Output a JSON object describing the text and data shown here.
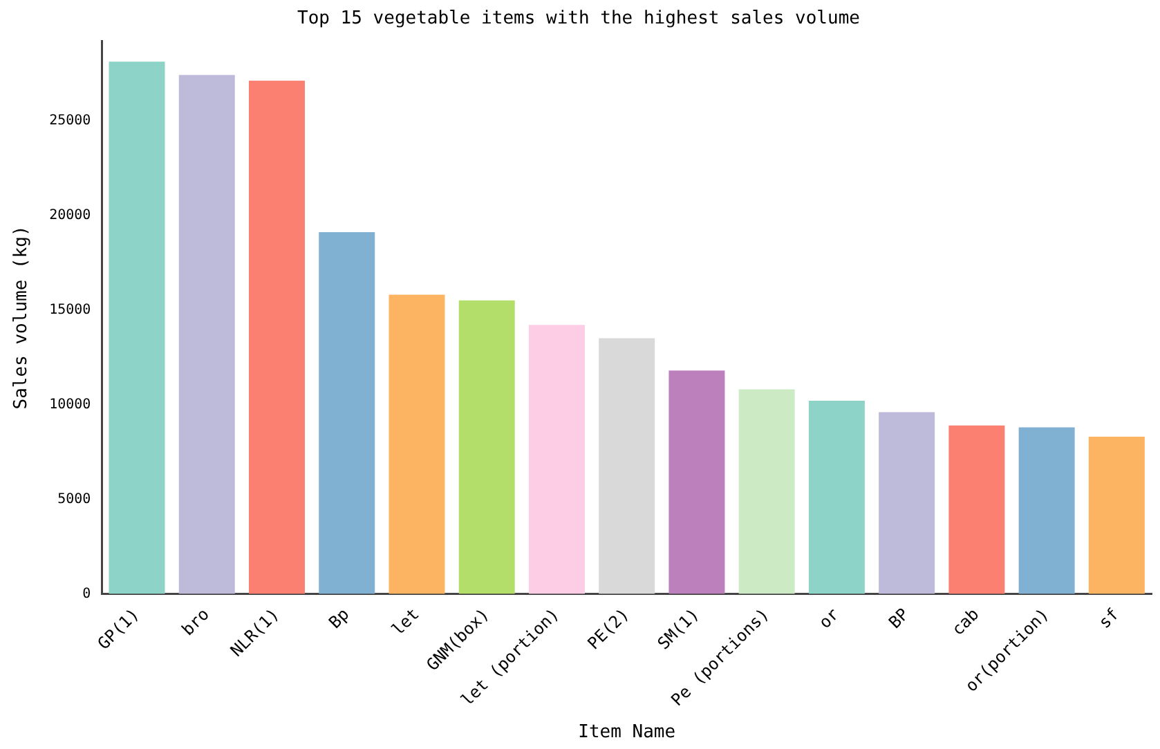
{
  "chart_data": {
    "type": "bar",
    "title": "Top 15 vegetable items with the highest sales volume",
    "xlabel": "Item Name",
    "ylabel": "Sales volume (kg)",
    "categories": [
      "GP(1)",
      "bro",
      "NLR(1)",
      "Bp",
      "let",
      "GNM(box)",
      "let (portion)",
      "PE(2)",
      "SM(1)",
      "Pe (portions)",
      "or",
      "BP",
      "cab",
      "or(portion)",
      "sf"
    ],
    "values": [
      28100,
      27400,
      27100,
      19100,
      15800,
      15500,
      14200,
      13500,
      11800,
      10800,
      10200,
      9600,
      8900,
      8800,
      8300
    ],
    "colors": [
      "#8dd3c7",
      "#bebada",
      "#fb8072",
      "#80b1d3",
      "#fdb462",
      "#b3de69",
      "#fccde5",
      "#d9d9d9",
      "#bc80bd",
      "#ccebc5",
      "#8dd3c7",
      "#bebada",
      "#fb8072",
      "#80b1d3",
      "#fdb462"
    ],
    "ylim": [
      0,
      29200
    ],
    "yticks": [
      0,
      5000,
      10000,
      15000,
      20000,
      25000
    ],
    "grid": false
  }
}
